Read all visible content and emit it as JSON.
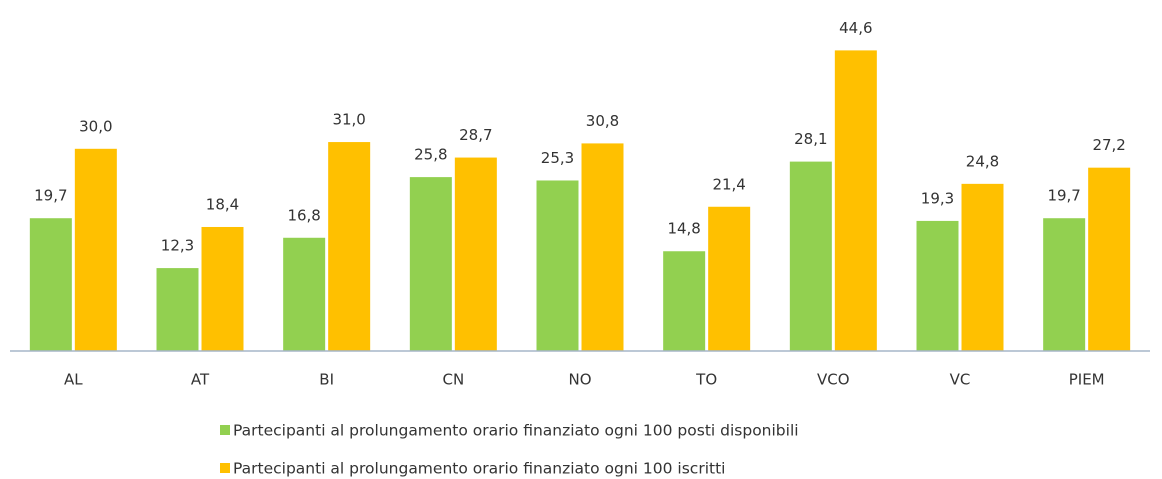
{
  "chart_data": {
    "type": "bar",
    "categories": [
      "AL",
      "AT",
      "BI",
      "CN",
      "NO",
      "TO",
      "VCO",
      "VC",
      "PIEM"
    ],
    "series": [
      {
        "name": "Partecipanti al prolungamento orario finanziato ogni 100 posti disponibili",
        "color": "#92d050",
        "values": [
          19.7,
          12.3,
          16.8,
          25.8,
          25.3,
          14.8,
          28.1,
          19.3,
          19.7
        ],
        "value_labels": [
          "19,7",
          "12,3",
          "16,8",
          "25,8",
          "25,3",
          "14,8",
          "28,1",
          "19,3",
          "19,7"
        ]
      },
      {
        "name": "Partecipanti al prolungamento orario finanziato ogni 100 iscritti",
        "color": "#ffc000",
        "values": [
          30.0,
          18.4,
          31.0,
          28.7,
          30.8,
          21.4,
          44.6,
          24.8,
          27.2
        ],
        "value_labels": [
          "30,0",
          "18,4",
          "31,0",
          "28,7",
          "30,8",
          "21,4",
          "44,6",
          "24,8",
          "27,2"
        ]
      }
    ],
    "ylim": [
      0,
      50
    ]
  }
}
